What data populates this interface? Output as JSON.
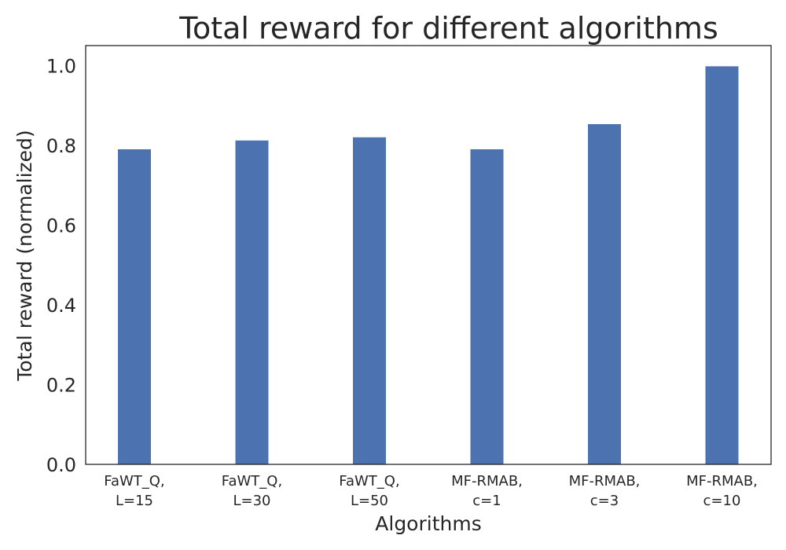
{
  "chart_data": {
    "type": "bar",
    "title": "Total reward for different algorithms",
    "xlabel": "Algorithms",
    "ylabel": "Total reward (normalized)",
    "categories": [
      [
        "FaWT_Q,",
        "L=15"
      ],
      [
        "FaWT_Q,",
        "L=30"
      ],
      [
        "FaWT_Q,",
        "L=50"
      ],
      [
        "MF-RMAB,",
        "c=1"
      ],
      [
        "MF-RMAB,",
        "c=3"
      ],
      [
        "MF-RMAB,",
        "c=10"
      ]
    ],
    "values": [
      0.79,
      0.812,
      0.82,
      0.79,
      0.853,
      0.998
    ],
    "ylim": [
      0,
      1.05
    ],
    "yticks": [
      "0.0",
      "0.2",
      "0.4",
      "0.6",
      "0.8",
      "1.0"
    ],
    "grid": false,
    "legend": "none",
    "bar_color": "#4c72b0"
  }
}
